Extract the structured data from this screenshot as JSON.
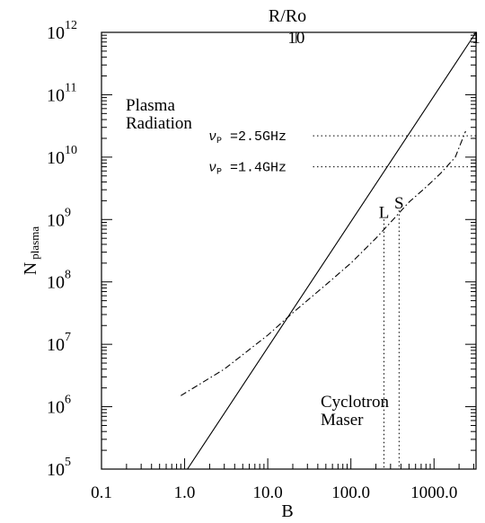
{
  "chart_data": {
    "type": "line",
    "xlabel": "B",
    "ylabel_main": "N",
    "ylabel_sub": "plasma",
    "top_axis_label": "R/Ro",
    "x_scale": "log",
    "y_scale": "log",
    "xlim": [
      0.1,
      3200
    ],
    "ylim": [
      100000,
      1000000000000
    ],
    "x_ticks": [
      {
        "value": 0.1,
        "label": "0.1"
      },
      {
        "value": 1,
        "label": "1.0"
      },
      {
        "value": 10,
        "label": "10.0"
      },
      {
        "value": 100,
        "label": "100.0"
      },
      {
        "value": 1000,
        "label": "1000.0"
      }
    ],
    "y_ticks": [
      {
        "value": 100000,
        "base": "10",
        "exp": "5"
      },
      {
        "value": 1000000,
        "base": "10",
        "exp": "6"
      },
      {
        "value": 10000000,
        "base": "10",
        "exp": "7"
      },
      {
        "value": 100000000,
        "base": "10",
        "exp": "8"
      },
      {
        "value": 1000000000,
        "base": "10",
        "exp": "9"
      },
      {
        "value": 10000000000,
        "base": "10",
        "exp": "10"
      },
      {
        "value": 100000000000,
        "base": "10",
        "exp": "11"
      },
      {
        "value": 1000000000000,
        "base": "10",
        "exp": "12"
      }
    ],
    "top_ticks": [
      {
        "b_value": 22,
        "label": "10"
      },
      {
        "b_value": 3200,
        "label": "1"
      }
    ],
    "series": [
      {
        "style": "solid",
        "x": [
          1.08,
          3200
        ],
        "y": [
          100000,
          1000000000000
        ]
      },
      {
        "style": "dash-dot",
        "x": [
          0.9,
          3,
          10,
          20,
          50,
          100,
          200,
          300,
          500,
          800,
          1200,
          1800,
          2400
        ],
        "y": [
          1500000,
          4000000,
          14000000,
          32000000,
          90000000,
          200000000,
          500000000,
          900000000,
          1900000000,
          3300000000,
          5500000000,
          10000000000,
          26000000000
        ]
      }
    ],
    "reference_lines": [
      {
        "label_greek": "ν",
        "label_sub": "P",
        "label_text": " =2.5GHz",
        "y": 22000000000,
        "x_start": 35,
        "x_end": 3200
      },
      {
        "label_greek": "ν",
        "label_sub": "P",
        "label_text": " =1.4GHz",
        "y": 7000000000,
        "x_start": 35,
        "x_end": 3200
      },
      {
        "label": "L",
        "x": 250,
        "y_start": 100000,
        "y_end": 1000000000
      },
      {
        "label": "S",
        "x": 380,
        "y_start": 100000,
        "y_end": 1400000000
      }
    ],
    "annotations": [
      {
        "lines": [
          "Plasma",
          "Radiation"
        ]
      },
      {
        "lines": [
          "Cyclotron",
          "Maser"
        ]
      }
    ]
  }
}
